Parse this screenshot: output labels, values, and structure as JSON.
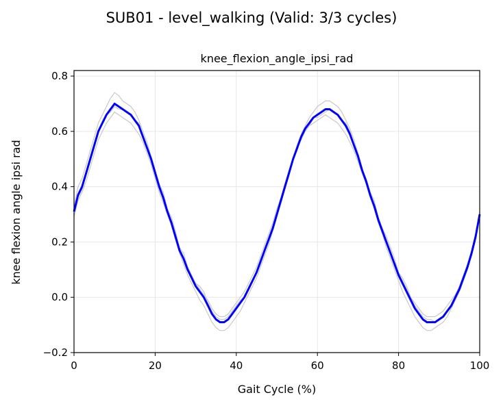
{
  "figure": {
    "suptitle": "SUB01 - level_walking (Valid: 3/3 cycles)"
  },
  "chart_data": {
    "type": "line",
    "title": "knee_flexion_angle_ipsi_rad",
    "xlabel": "Gait Cycle (%)",
    "ylabel": "knee flexion angle ipsi rad",
    "xlim": [
      0,
      100
    ],
    "ylim": [
      -0.2,
      0.82
    ],
    "xticks": [
      0,
      20,
      40,
      60,
      80,
      100
    ],
    "yticks": [
      -0.2,
      0.0,
      0.2,
      0.4,
      0.6,
      0.8
    ],
    "xtick_labels": [
      "0",
      "20",
      "40",
      "60",
      "80",
      "100"
    ],
    "ytick_labels": [
      "−0.2",
      "0.0",
      "0.2",
      "0.4",
      "0.6",
      "0.8"
    ],
    "grid": true,
    "colors": {
      "mean": "#0000ff",
      "cycles": "#c8c8c8"
    },
    "series": [
      {
        "role": "mean",
        "x": [
          0,
          1,
          2,
          3,
          4,
          5,
          6,
          7,
          8,
          9,
          10,
          11,
          12,
          13,
          14,
          15,
          16,
          17,
          18,
          19,
          20,
          21,
          22,
          23,
          24,
          25,
          26,
          27,
          28,
          29,
          30,
          31,
          32,
          33,
          34,
          35,
          36,
          37,
          38,
          39,
          40,
          41,
          42,
          43,
          44,
          45,
          46,
          47,
          48,
          49,
          50,
          51,
          52,
          53,
          54,
          55,
          56,
          57,
          58,
          59,
          60,
          61,
          62,
          63,
          64,
          65,
          66,
          67,
          68,
          69,
          70,
          71,
          72,
          73,
          74,
          75,
          76,
          77,
          78,
          79,
          80,
          81,
          82,
          83,
          84,
          85,
          86,
          87,
          88,
          89,
          90,
          91,
          92,
          93,
          94,
          95,
          96,
          97,
          98,
          99,
          100
        ],
        "values": [
          0.31,
          0.37,
          0.4,
          0.45,
          0.5,
          0.55,
          0.6,
          0.63,
          0.66,
          0.68,
          0.7,
          0.69,
          0.68,
          0.67,
          0.66,
          0.64,
          0.62,
          0.58,
          0.54,
          0.5,
          0.45,
          0.4,
          0.36,
          0.31,
          0.27,
          0.22,
          0.17,
          0.14,
          0.1,
          0.07,
          0.04,
          0.02,
          0.0,
          -0.03,
          -0.06,
          -0.08,
          -0.09,
          -0.09,
          -0.08,
          -0.06,
          -0.04,
          -0.02,
          0.0,
          0.03,
          0.06,
          0.09,
          0.13,
          0.17,
          0.21,
          0.25,
          0.3,
          0.35,
          0.4,
          0.45,
          0.5,
          0.54,
          0.58,
          0.61,
          0.63,
          0.65,
          0.66,
          0.67,
          0.68,
          0.68,
          0.67,
          0.66,
          0.64,
          0.62,
          0.59,
          0.55,
          0.51,
          0.46,
          0.42,
          0.37,
          0.33,
          0.28,
          0.24,
          0.2,
          0.16,
          0.12,
          0.08,
          0.05,
          0.02,
          -0.01,
          -0.04,
          -0.06,
          -0.08,
          -0.09,
          -0.09,
          -0.09,
          -0.08,
          -0.07,
          -0.05,
          -0.03,
          0.0,
          0.03,
          0.07,
          0.11,
          0.16,
          0.22,
          0.3
        ]
      },
      {
        "role": "cycle",
        "x": [
          0,
          1,
          2,
          3,
          4,
          5,
          6,
          7,
          8,
          9,
          10,
          11,
          12,
          13,
          14,
          15,
          16,
          17,
          18,
          19,
          20,
          21,
          22,
          23,
          24,
          25,
          26,
          27,
          28,
          29,
          30,
          31,
          32,
          33,
          34,
          35,
          36,
          37,
          38,
          39,
          40,
          41,
          42,
          43,
          44,
          45,
          46,
          47,
          48,
          49,
          50,
          51,
          52,
          53,
          54,
          55,
          56,
          57,
          58,
          59,
          60,
          61,
          62,
          63,
          64,
          65,
          66,
          67,
          68,
          69,
          70,
          71,
          72,
          73,
          74,
          75,
          76,
          77,
          78,
          79,
          80,
          81,
          82,
          83,
          84,
          85,
          86,
          87,
          88,
          89,
          90,
          91,
          92,
          93,
          94,
          95,
          96,
          97,
          98,
          99,
          100
        ],
        "values": [
          0.33,
          0.4,
          0.43,
          0.48,
          0.53,
          0.58,
          0.63,
          0.66,
          0.69,
          0.72,
          0.74,
          0.73,
          0.71,
          0.7,
          0.69,
          0.67,
          0.64,
          0.6,
          0.56,
          0.51,
          0.46,
          0.41,
          0.36,
          0.31,
          0.26,
          0.21,
          0.16,
          0.12,
          0.08,
          0.05,
          0.02,
          -0.01,
          -0.03,
          -0.06,
          -0.09,
          -0.11,
          -0.12,
          -0.12,
          -0.11,
          -0.09,
          -0.07,
          -0.05,
          -0.02,
          0.01,
          0.04,
          0.07,
          0.11,
          0.15,
          0.19,
          0.24,
          0.29,
          0.34,
          0.39,
          0.44,
          0.5,
          0.55,
          0.59,
          0.62,
          0.65,
          0.67,
          0.69,
          0.7,
          0.71,
          0.71,
          0.7,
          0.69,
          0.67,
          0.64,
          0.61,
          0.57,
          0.52,
          0.47,
          0.42,
          0.37,
          0.32,
          0.27,
          0.23,
          0.18,
          0.14,
          0.1,
          0.06,
          0.02,
          -0.01,
          -0.04,
          -0.07,
          -0.09,
          -0.11,
          -0.12,
          -0.12,
          -0.11,
          -0.1,
          -0.09,
          -0.07,
          -0.04,
          -0.01,
          0.02,
          0.06,
          0.1,
          0.16,
          0.22,
          0.31
        ]
      },
      {
        "role": "cycle",
        "x": [
          0,
          1,
          2,
          3,
          4,
          5,
          6,
          7,
          8,
          9,
          10,
          11,
          12,
          13,
          14,
          15,
          16,
          17,
          18,
          19,
          20,
          21,
          22,
          23,
          24,
          25,
          26,
          27,
          28,
          29,
          30,
          31,
          32,
          33,
          34,
          35,
          36,
          37,
          38,
          39,
          40,
          41,
          42,
          43,
          44,
          45,
          46,
          47,
          48,
          49,
          50,
          51,
          52,
          53,
          54,
          55,
          56,
          57,
          58,
          59,
          60,
          61,
          62,
          63,
          64,
          65,
          66,
          67,
          68,
          69,
          70,
          71,
          72,
          73,
          74,
          75,
          76,
          77,
          78,
          79,
          80,
          81,
          82,
          83,
          84,
          85,
          86,
          87,
          88,
          89,
          90,
          91,
          92,
          93,
          94,
          95,
          96,
          97,
          98,
          99,
          100
        ],
        "values": [
          0.29,
          0.35,
          0.38,
          0.42,
          0.47,
          0.52,
          0.57,
          0.6,
          0.63,
          0.65,
          0.67,
          0.66,
          0.65,
          0.64,
          0.63,
          0.61,
          0.59,
          0.56,
          0.52,
          0.48,
          0.43,
          0.38,
          0.34,
          0.3,
          0.26,
          0.21,
          0.17,
          0.14,
          0.11,
          0.08,
          0.05,
          0.03,
          0.01,
          -0.01,
          -0.04,
          -0.06,
          -0.07,
          -0.07,
          -0.06,
          -0.04,
          -0.02,
          0.0,
          0.02,
          0.05,
          0.08,
          0.11,
          0.15,
          0.19,
          0.23,
          0.27,
          0.32,
          0.36,
          0.41,
          0.46,
          0.5,
          0.54,
          0.57,
          0.6,
          0.62,
          0.63,
          0.64,
          0.65,
          0.66,
          0.65,
          0.64,
          0.63,
          0.61,
          0.59,
          0.56,
          0.53,
          0.49,
          0.45,
          0.41,
          0.36,
          0.32,
          0.28,
          0.24,
          0.2,
          0.16,
          0.12,
          0.09,
          0.06,
          0.03,
          0.0,
          -0.02,
          -0.04,
          -0.06,
          -0.07,
          -0.07,
          -0.07,
          -0.06,
          -0.05,
          -0.03,
          -0.01,
          0.01,
          0.04,
          0.08,
          0.12,
          0.17,
          0.23,
          0.29
        ]
      },
      {
        "role": "cycle",
        "x": [
          0,
          1,
          2,
          3,
          4,
          5,
          6,
          7,
          8,
          9,
          10,
          11,
          12,
          13,
          14,
          15,
          16,
          17,
          18,
          19,
          20,
          21,
          22,
          23,
          24,
          25,
          26,
          27,
          28,
          29,
          30,
          31,
          32,
          33,
          34,
          35,
          36,
          37,
          38,
          39,
          40,
          41,
          42,
          43,
          44,
          45,
          46,
          47,
          48,
          49,
          50,
          51,
          52,
          53,
          54,
          55,
          56,
          57,
          58,
          59,
          60,
          61,
          62,
          63,
          64,
          65,
          66,
          67,
          68,
          69,
          70,
          71,
          72,
          73,
          74,
          75,
          76,
          77,
          78,
          79,
          80,
          81,
          82,
          83,
          84,
          85,
          86,
          87,
          88,
          89,
          90,
          91,
          92,
          93,
          94,
          95,
          96,
          97,
          98,
          99,
          100
        ],
        "values": [
          0.31,
          0.36,
          0.39,
          0.45,
          0.5,
          0.55,
          0.6,
          0.63,
          0.66,
          0.67,
          0.69,
          0.68,
          0.68,
          0.67,
          0.66,
          0.64,
          0.63,
          0.58,
          0.54,
          0.51,
          0.46,
          0.41,
          0.38,
          0.32,
          0.29,
          0.24,
          0.18,
          0.16,
          0.11,
          0.08,
          0.05,
          0.04,
          0.02,
          -0.02,
          -0.05,
          -0.07,
          -0.08,
          -0.08,
          -0.07,
          -0.05,
          -0.03,
          -0.01,
          0.0,
          0.03,
          0.06,
          0.09,
          0.13,
          0.17,
          0.21,
          0.24,
          0.29,
          0.35,
          0.4,
          0.45,
          0.5,
          0.53,
          0.58,
          0.61,
          0.62,
          0.65,
          0.65,
          0.66,
          0.67,
          0.68,
          0.67,
          0.66,
          0.64,
          0.63,
          0.6,
          0.55,
          0.52,
          0.46,
          0.43,
          0.38,
          0.35,
          0.29,
          0.25,
          0.22,
          0.18,
          0.14,
          0.09,
          0.07,
          0.04,
          0.0,
          -0.03,
          -0.05,
          -0.07,
          -0.08,
          -0.08,
          -0.09,
          -0.08,
          -0.07,
          -0.05,
          -0.04,
          -0.01,
          0.03,
          0.07,
          0.11,
          0.15,
          0.21,
          0.3
        ]
      }
    ]
  }
}
